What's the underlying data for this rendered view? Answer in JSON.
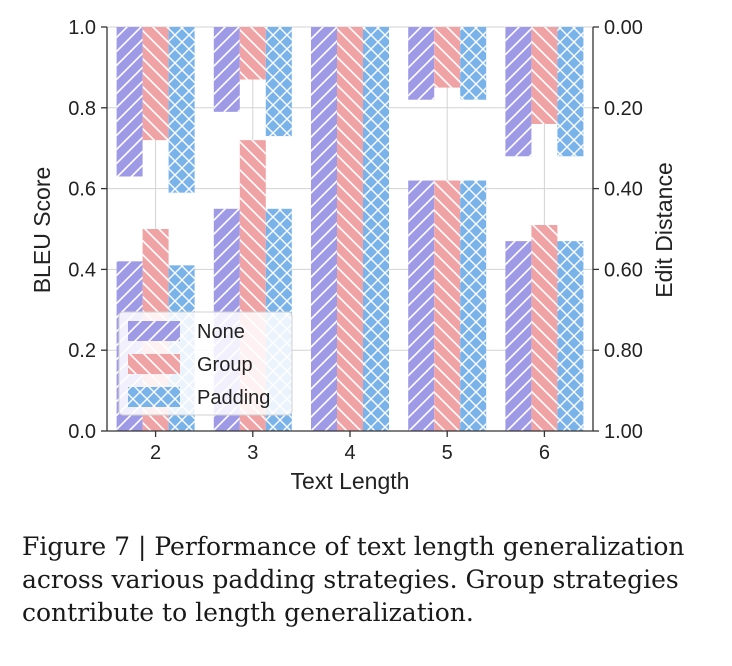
{
  "chart_data": {
    "type": "bar",
    "categories": [
      "2",
      "3",
      "4",
      "5",
      "6"
    ],
    "xlabel": "Text Length",
    "ylabel_left": "BLEU Score",
    "ylabel_right": "Edit Distance",
    "ylim_left": [
      0,
      1.0
    ],
    "ylim_right": [
      0,
      1.0
    ],
    "right_axis_inverted": true,
    "yticks_left": [
      "0.0",
      "0.2",
      "0.4",
      "0.6",
      "0.8",
      "1.0"
    ],
    "yticks_right": [
      "0.00",
      "0.20",
      "0.40",
      "0.60",
      "0.80",
      "1.00"
    ],
    "grid": true,
    "legend_placement": "lower-left",
    "series": [
      {
        "name": "None",
        "color": "#9f9ae6",
        "hatch": "diagonal-forward",
        "bleu": [
          0.42,
          0.55,
          1.0,
          0.62,
          0.47
        ],
        "edit_distance": [
          0.37,
          0.21,
          0.0,
          0.18,
          0.32
        ]
      },
      {
        "name": "Group",
        "color": "#f0a3a5",
        "hatch": "diagonal-back",
        "bleu": [
          0.5,
          0.72,
          0.995,
          0.62,
          0.51
        ],
        "edit_distance": [
          0.28,
          0.13,
          0.005,
          0.15,
          0.24
        ]
      },
      {
        "name": "Padding",
        "color": "#79b3ea",
        "hatch": "cross",
        "bleu": [
          0.41,
          0.55,
          1.0,
          0.62,
          0.47
        ],
        "edit_distance": [
          0.41,
          0.27,
          0.0,
          0.18,
          0.32
        ]
      }
    ]
  },
  "caption": {
    "line1": "Figure 7 | Performance of text length generalization",
    "line2": "across various padding strategies. Group strategies",
    "line3": "contribute to length generalization."
  }
}
